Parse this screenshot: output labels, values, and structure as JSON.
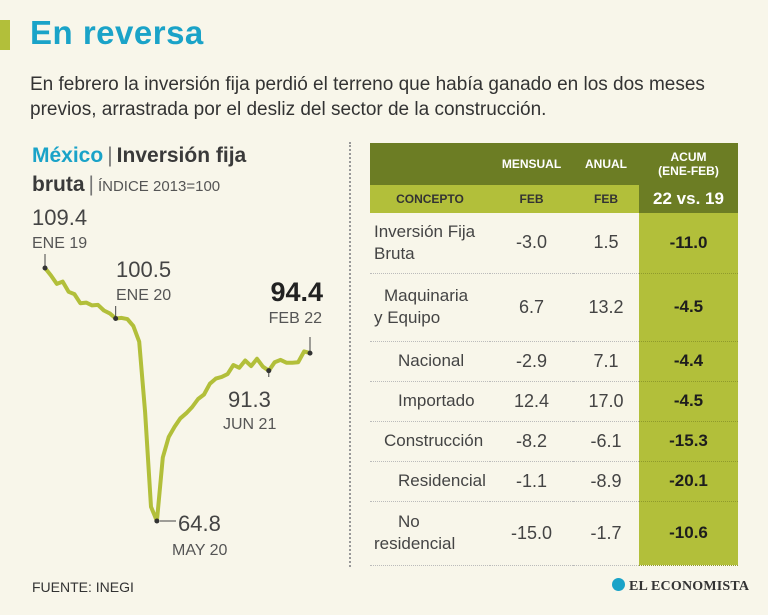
{
  "header": {
    "title": "En reversa",
    "subtitle": "En febrero la inversión fija perdió el terreno que había ganado en los dos meses previos, arrastrada por el desliz del sector de la construcción."
  },
  "chart_heading": {
    "country": "México",
    "separator": "|",
    "metric_line1": "Inversión fija",
    "metric_line2": "bruta",
    "index_label": "ÍNDICE 2013=100"
  },
  "chart_data": {
    "type": "line",
    "title": "Inversión fija bruta",
    "ylabel": "ÍNDICE 2013=100",
    "ylim": [
      60,
      112
    ],
    "series": [
      {
        "name": "Inversión fija bruta",
        "values": [
          109.4,
          108.1,
          106.6,
          107.0,
          105.2,
          104.8,
          103.2,
          103.3,
          102.8,
          102.9,
          101.9,
          101.4,
          100.5,
          100.6,
          100.4,
          99.2,
          96.4,
          84.0,
          67.3,
          64.8,
          76.0,
          79.6,
          81.4,
          82.9,
          83.8,
          84.9,
          86.3,
          87.1,
          89.0,
          89.9,
          90.2,
          90.7,
          92.3,
          91.8,
          93.1,
          92.1,
          93.4,
          92.0,
          91.3,
          92.8,
          93.2,
          92.7,
          92.7,
          92.8,
          94.7,
          94.4
        ]
      }
    ],
    "annotations": [
      {
        "value": "109.4",
        "date": "ENE 19",
        "index": 0
      },
      {
        "value": "100.5",
        "date": "ENE 20",
        "index": 12
      },
      {
        "value": "64.8",
        "date": "MAY 20",
        "index": 19
      },
      {
        "value": "91.3",
        "date": "JUN 21",
        "index": 38
      },
      {
        "value": "94.4",
        "date": "FEB 22",
        "index": 45
      }
    ],
    "line_color": "#b2bf3a"
  },
  "table": {
    "headers": {
      "mensual": "MENSUAL",
      "anual": "ANUAL",
      "acum_line1": "ACUM",
      "acum_line2": "(ENE-FEB)",
      "concepto": "CONCEPTO",
      "feb1": "FEB",
      "feb2": "FEB",
      "acum_cmp": "22 vs. 19"
    },
    "rows": [
      {
        "concept_line1": "Inversión Fija",
        "concept_line2": "Bruta",
        "mensual": "-3.0",
        "anual": "1.5",
        "acum": "-11.0"
      },
      {
        "concept_line1": "Maquinaria",
        "concept_line2": "y Equipo",
        "mensual": "6.7",
        "anual": "13.2",
        "acum": "-4.5"
      },
      {
        "concept_line1": "Nacional",
        "concept_line2": "",
        "mensual": "-2.9",
        "anual": "7.1",
        "acum": "-4.4"
      },
      {
        "concept_line1": "Importado",
        "concept_line2": "",
        "mensual": "12.4",
        "anual": "17.0",
        "acum": "-4.5"
      },
      {
        "concept_line1": "Construcción",
        "concept_line2": "",
        "mensual": "-8.2",
        "anual": "-6.1",
        "acum": "-15.3"
      },
      {
        "concept_line1": "Residencial",
        "concept_line2": "",
        "mensual": "-1.1",
        "anual": "-8.9",
        "acum": "-20.1"
      },
      {
        "concept_line1": "No",
        "concept_line2": "residencial",
        "mensual": "-15.0",
        "anual": "-1.7",
        "acum": "-10.6"
      }
    ]
  },
  "footer": {
    "source": "FUENTE: INEGI",
    "brand": "EL ECONOMISTA",
    "brand_icon": "globe-icon"
  },
  "colors": {
    "accent_blue": "#1aa3c8",
    "olive_light": "#b2bf3a",
    "olive_dark": "#6c7d24",
    "background": "#f8f6ea"
  }
}
